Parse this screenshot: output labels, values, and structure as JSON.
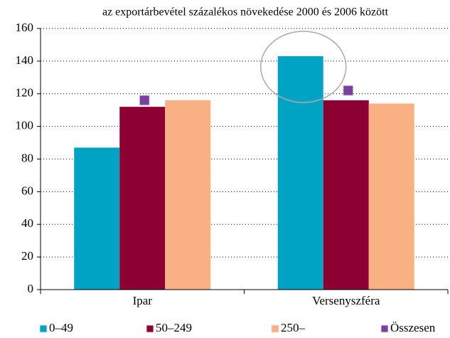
{
  "chart_data": {
    "type": "bar",
    "title": "az exportárbevétel százalékos növekedése 2000 és 2006 között",
    "categories": [
      "Ipar",
      "Versenyszféra"
    ],
    "series": [
      {
        "name": "0–49",
        "color": "#00a3c4",
        "values": [
          87,
          143
        ]
      },
      {
        "name": "50–249",
        "color": "#8c0032",
        "values": [
          112,
          116
        ]
      },
      {
        "name": "250–",
        "color": "#f9b083",
        "values": [
          116,
          114
        ]
      },
      {
        "name": "Összesen",
        "color": "#7b3f9e",
        "values": [
          116,
          122
        ],
        "type": "scatter"
      }
    ],
    "ylim": [
      0,
      160
    ],
    "yticks": [
      0,
      20,
      40,
      60,
      80,
      100,
      120,
      140,
      160
    ],
    "grid": true,
    "legend": "bottom"
  }
}
